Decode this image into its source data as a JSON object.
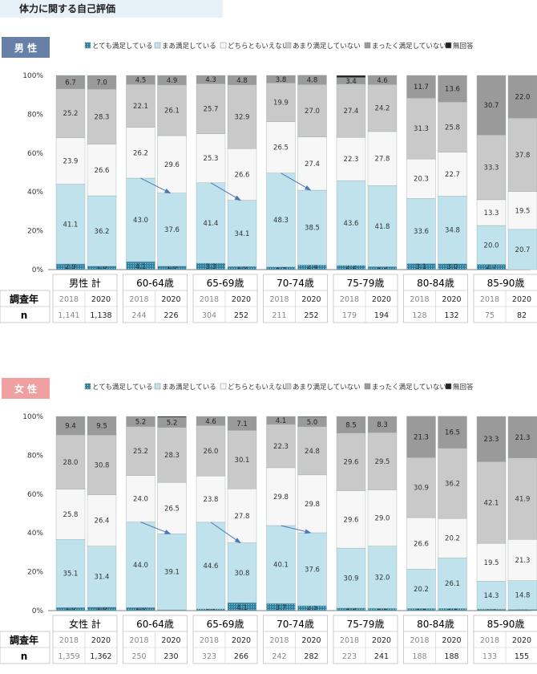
{
  "page_title": "体力に関する自己評価",
  "colors": {
    "very_satisfied": "#2e7ea0",
    "satisfied": "#bfe2ec",
    "neither": "#f7f7f7",
    "not_very": "#c9c9c9",
    "not_at_all": "#9a9a9a",
    "no_answer": "#222222",
    "male_badge": "#6680a8",
    "female_badge": "#f0a0a0"
  },
  "chart_data": [
    {
      "type": "bar",
      "stacked": true,
      "badge": "男 性",
      "row_labels": {
        "year": "調査年",
        "n": "n"
      },
      "legend": [
        "とても満足している",
        "まあ満足している",
        "どちらともいえない",
        "あまり満足していない",
        "まったく満足していない",
        "無回答"
      ],
      "y_ticks": [
        "0%",
        "20%",
        "40%",
        "60%",
        "80%",
        "100%"
      ],
      "ylim": [
        0,
        100
      ],
      "groups": [
        {
          "label": "男性 計",
          "years": [
            "2018",
            "2020"
          ],
          "n": [
            "1,141",
            "1,138"
          ],
          "arrow": false,
          "bars": [
            {
              "values": [
                2.9,
                41.1,
                23.9,
                25.2,
                6.7,
                0.2
              ],
              "labels": [
                "2.9",
                "41.1",
                "23.9",
                "25.2",
                "6.7",
                ""
              ]
            },
            {
              "values": [
                1.8,
                36.2,
                26.6,
                28.3,
                7.0,
                0.1
              ],
              "labels": [
                "1.8",
                "36.2",
                "26.6",
                "28.3",
                "7.0",
                ""
              ]
            }
          ]
        },
        {
          "label": "60-64歳",
          "years": [
            "2018",
            "2020"
          ],
          "n": [
            "244",
            "226"
          ],
          "arrow": true,
          "bars": [
            {
              "values": [
                4.1,
                43.0,
                26.2,
                22.1,
                4.5,
                0.1
              ],
              "labels": [
                "4.1",
                "43.0",
                "26.2",
                "22.1",
                "4.5",
                ""
              ]
            },
            {
              "values": [
                1.8,
                37.6,
                29.6,
                26.1,
                4.9,
                0.0
              ],
              "labels": [
                "1.8",
                "37.6",
                "29.6",
                "26.1",
                "4.9",
                ""
              ]
            }
          ]
        },
        {
          "label": "65-69歳",
          "years": [
            "2018",
            "2020"
          ],
          "n": [
            "304",
            "252"
          ],
          "arrow": true,
          "bars": [
            {
              "values": [
                3.3,
                41.4,
                25.3,
                25.7,
                4.3,
                0.0
              ],
              "labels": [
                "3.3",
                "41.4",
                "25.3",
                "25.7",
                "4.3",
                ""
              ]
            },
            {
              "values": [
                1.6,
                34.1,
                26.6,
                32.9,
                4.8,
                0.0
              ],
              "labels": [
                "1.6",
                "34.1",
                "26.6",
                "32.9",
                "4.8",
                ""
              ]
            }
          ]
        },
        {
          "label": "70-74歳",
          "years": [
            "2018",
            "2020"
          ],
          "n": [
            "211",
            "252"
          ],
          "arrow": true,
          "bars": [
            {
              "values": [
                1.4,
                48.3,
                26.5,
                19.9,
                3.8,
                0.1
              ],
              "labels": [
                "1.4",
                "48.3",
                "26.5",
                "19.9",
                "3.8",
                ""
              ]
            },
            {
              "values": [
                2.4,
                38.5,
                27.4,
                27.0,
                4.8,
                0.0
              ],
              "labels": [
                "2.4",
                "38.5",
                "27.4",
                "27.0",
                "4.8",
                ""
              ]
            }
          ]
        },
        {
          "label": "75-79歳",
          "years": [
            "2018",
            "2020"
          ],
          "n": [
            "179",
            "194"
          ],
          "arrow": false,
          "bars": [
            {
              "values": [
                2.2,
                43.6,
                22.3,
                27.4,
                3.4,
                1.1
              ],
              "labels": [
                "2.2",
                "43.6",
                "22.3",
                "27.4",
                "3.4",
                ""
              ]
            },
            {
              "values": [
                1.5,
                41.8,
                27.8,
                24.2,
                4.6,
                0.1
              ],
              "labels": [
                "1.5",
                "41.8",
                "27.8",
                "24.2",
                "4.6",
                ""
              ]
            }
          ]
        },
        {
          "label": "80-84歳",
          "years": [
            "2018",
            "2020"
          ],
          "n": [
            "128",
            "132"
          ],
          "arrow": false,
          "bars": [
            {
              "values": [
                3.1,
                33.6,
                20.3,
                31.3,
                11.7,
                0.0
              ],
              "labels": [
                "3.1",
                "33.6",
                "20.3",
                "31.3",
                "11.7",
                ""
              ]
            },
            {
              "values": [
                3.0,
                34.8,
                22.7,
                25.8,
                13.6,
                0.1
              ],
              "labels": [
                "3.0",
                "34.8",
                "22.7",
                "25.8",
                "13.6",
                ""
              ]
            }
          ]
        },
        {
          "label": "85-90歳",
          "years": [
            "2018",
            "2020"
          ],
          "n": [
            "75",
            "82"
          ],
          "arrow": false,
          "bars": [
            {
              "values": [
                2.7,
                20.0,
                13.3,
                33.3,
                30.7,
                0.0
              ],
              "labels": [
                "2.7",
                "20.0",
                "13.3",
                "33.3",
                "30.7",
                ""
              ]
            },
            {
              "values": [
                0.0,
                20.7,
                19.5,
                37.8,
                22.0,
                0.0
              ],
              "labels": [
                "",
                "20.7",
                "19.5",
                "37.8",
                "22.0",
                ""
              ]
            }
          ]
        }
      ]
    },
    {
      "type": "bar",
      "stacked": true,
      "badge": "女 性",
      "row_labels": {
        "year": "調査年",
        "n": "n"
      },
      "legend": [
        "とても満足している",
        "まあ満足している",
        "どちらともいえない",
        "あまり満足していない",
        "まったく満足していない",
        "無回答"
      ],
      "y_ticks": [
        "0%",
        "20%",
        "40%",
        "60%",
        "80%",
        "100%"
      ],
      "ylim": [
        0,
        100
      ],
      "groups": [
        {
          "label": "女性 計",
          "years": [
            "2018",
            "2020"
          ],
          "n": [
            "1,359",
            "1,362"
          ],
          "arrow": false,
          "bars": [
            {
              "values": [
                1.6,
                35.1,
                25.8,
                28.0,
                9.4,
                0.1
              ],
              "labels": [
                "1.6",
                "35.1",
                "25.8",
                "28.0",
                "9.4",
                ""
              ]
            },
            {
              "values": [
                1.8,
                31.4,
                26.4,
                30.8,
                9.5,
                0.1
              ],
              "labels": [
                "1.8",
                "31.4",
                "26.4",
                "30.8",
                "9.5",
                ""
              ]
            }
          ]
        },
        {
          "label": "60-64歳",
          "years": [
            "2018",
            "2020"
          ],
          "n": [
            "250",
            "230"
          ],
          "arrow": true,
          "bars": [
            {
              "values": [
                1.6,
                44.0,
                24.0,
                25.2,
                5.2,
                0.0
              ],
              "labels": [
                "1.6",
                "44.0",
                "24.0",
                "25.2",
                "5.2",
                ""
              ]
            },
            {
              "values": [
                0.4,
                39.1,
                26.5,
                28.3,
                5.2,
                0.5
              ],
              "labels": [
                "0.4",
                "39.1",
                "26.5",
                "28.3",
                "5.2",
                ""
              ]
            }
          ]
        },
        {
          "label": "65-69歳",
          "years": [
            "2018",
            "2020"
          ],
          "n": [
            "323",
            "266"
          ],
          "arrow": true,
          "bars": [
            {
              "values": [
                0.9,
                44.6,
                23.8,
                26.0,
                4.6,
                0.1
              ],
              "labels": [
                "0.9",
                "44.6",
                "23.8",
                "26.0",
                "4.6",
                ""
              ]
            },
            {
              "values": [
                4.1,
                30.8,
                27.8,
                30.1,
                7.1,
                0.1
              ],
              "labels": [
                "4.1",
                "30.8",
                "27.8",
                "30.1",
                "7.1",
                ""
              ]
            }
          ]
        },
        {
          "label": "70-74歳",
          "years": [
            "2018",
            "2020"
          ],
          "n": [
            "242",
            "282"
          ],
          "arrow": true,
          "bars": [
            {
              "values": [
                3.7,
                40.1,
                29.8,
                22.3,
                4.1,
                0.0
              ],
              "labels": [
                "3.7",
                "40.1",
                "29.8",
                "22.3",
                "4.1",
                ""
              ]
            },
            {
              "values": [
                2.5,
                37.6,
                29.8,
                24.8,
                5.0,
                0.3
              ],
              "labels": [
                "2.5",
                "37.6",
                "29.8",
                "24.8",
                "5.0",
                ""
              ]
            }
          ]
        },
        {
          "label": "75-79歳",
          "years": [
            "2018",
            "2020"
          ],
          "n": [
            "223",
            "241"
          ],
          "arrow": false,
          "bars": [
            {
              "values": [
                1.3,
                30.9,
                29.6,
                29.6,
                8.5,
                0.1
              ],
              "labels": [
                "1.3",
                "30.9",
                "29.6",
                "29.6",
                "8.5",
                ""
              ]
            },
            {
              "values": [
                1.2,
                32.0,
                29.0,
                29.5,
                8.3,
                0.0
              ],
              "labels": [
                "1.2",
                "32.0",
                "29.0",
                "29.5",
                "8.3",
                ""
              ]
            }
          ]
        },
        {
          "label": "80-84歳",
          "years": [
            "2018",
            "2020"
          ],
          "n": [
            "188",
            "188"
          ],
          "arrow": false,
          "bars": [
            {
              "values": [
                1.1,
                20.2,
                26.6,
                30.9,
                21.3,
                0.0
              ],
              "labels": [
                "1.1",
                "20.2",
                "26.6",
                "30.9",
                "21.3",
                ""
              ]
            },
            {
              "values": [
                1.1,
                26.1,
                20.2,
                36.2,
                16.5,
                0.0
              ],
              "labels": [
                "1.1",
                "26.1",
                "20.2",
                "36.2",
                "16.5",
                ""
              ]
            }
          ]
        },
        {
          "label": "85-90歳",
          "years": [
            "2018",
            "2020"
          ],
          "n": [
            "133",
            "155"
          ],
          "arrow": false,
          "bars": [
            {
              "values": [
                0.8,
                14.3,
                19.5,
                42.1,
                23.3,
                0.0
              ],
              "labels": [
                "0.8",
                "14.3",
                "19.5",
                "42.1",
                "23.3",
                ""
              ]
            },
            {
              "values": [
                0.6,
                14.8,
                21.3,
                41.9,
                21.3,
                0.1
              ],
              "labels": [
                "0.6",
                "14.8",
                "21.3",
                "41.9",
                "21.3",
                ""
              ]
            }
          ]
        }
      ]
    }
  ]
}
